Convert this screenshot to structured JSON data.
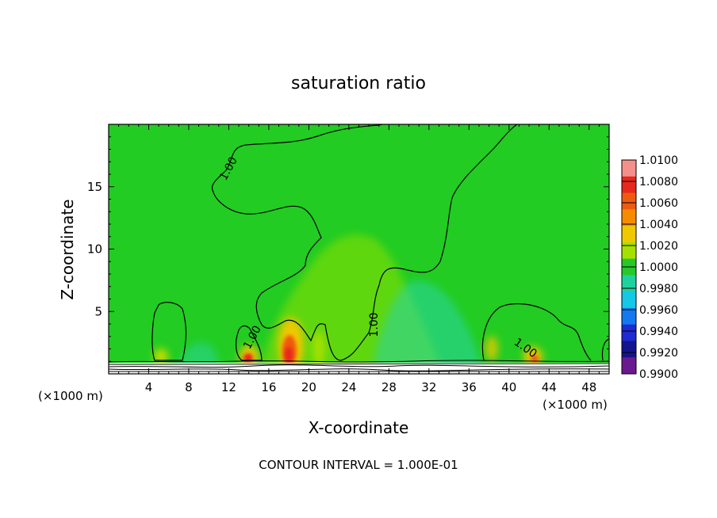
{
  "chart_data": {
    "type": "heatmap",
    "title": "saturation ratio",
    "xlabel": "X-coordinate",
    "ylabel": "Z-coordinate",
    "x_unit_left": "(×1000 m)",
    "x_unit_right": "(×1000 m)",
    "xlim": [
      0,
      50
    ],
    "ylim": [
      0,
      20
    ],
    "xticks": [
      4,
      8,
      12,
      16,
      20,
      24,
      28,
      32,
      36,
      40,
      44,
      48
    ],
    "yticks": [
      5,
      10,
      15
    ],
    "colorbar": {
      "values": [
        "1.0100",
        "1.0080",
        "1.0060",
        "1.0040",
        "1.0020",
        "1.0000",
        "0.9980",
        "0.9960",
        "0.9940",
        "0.9920",
        "0.9900"
      ],
      "colors": [
        "#f3908c",
        "#e7281e",
        "#f05a10",
        "#f58c00",
        "#f0c800",
        "#a6e000",
        "#28c828",
        "#1ed2a0",
        "#14c8e6",
        "#1478f0",
        "#1e2ad2",
        "#14148c",
        "#6a1a8e"
      ]
    },
    "contour_label": "1.00",
    "contour_label_count": 4,
    "footer": "CONTOUR INTERVAL = 1.000E-01",
    "background_value": 1.0,
    "features": [
      {
        "x": 18.0,
        "z": 1.8,
        "value": 1.008
      },
      {
        "x": 14.0,
        "z": 1.3,
        "value": 1.006
      },
      {
        "x": 42.0,
        "z": 1.2,
        "value": 1.005
      },
      {
        "x": 5.5,
        "z": 1.2,
        "value": 1.003
      },
      {
        "x": 28.0,
        "z": 4.0,
        "value": 0.999
      }
    ]
  }
}
